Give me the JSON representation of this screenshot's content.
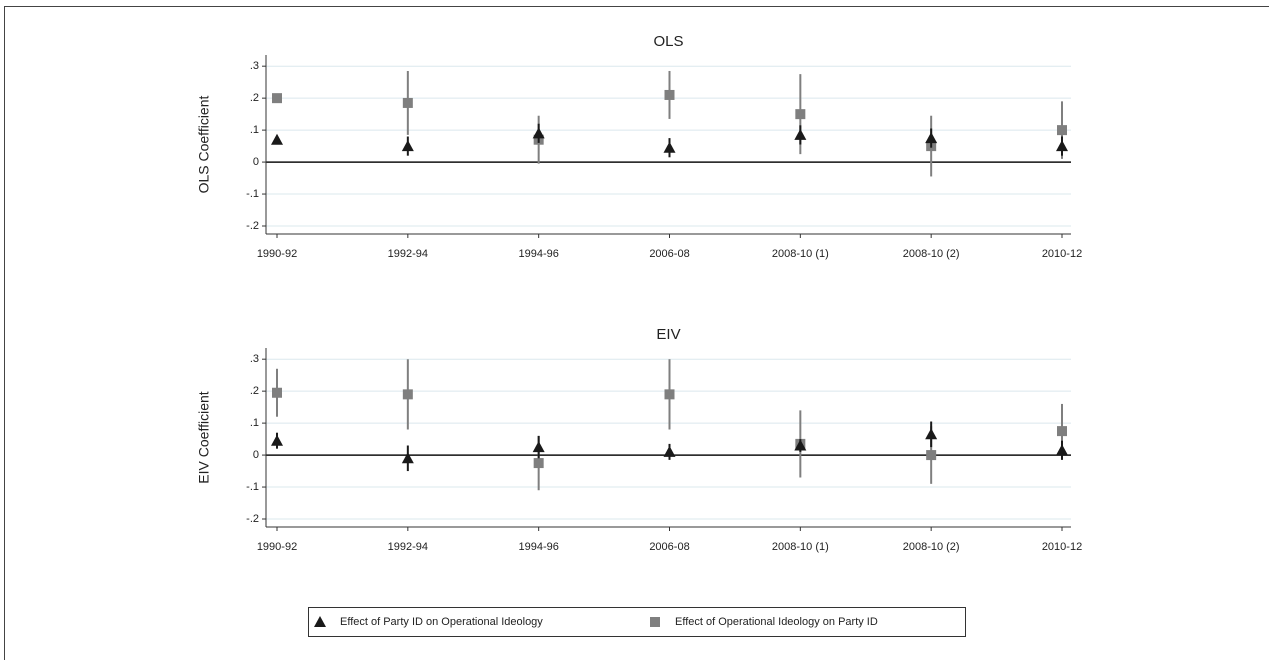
{
  "chart_data": [
    {
      "type": "errorbar",
      "title": "OLS",
      "y_label": "OLS Coefficient",
      "categories": [
        "1990-92",
        "1992-94",
        "1994-96",
        "2006-08",
        "2008-10 (1)",
        "2008-10 (2)",
        "2010-12"
      ],
      "series": [
        {
          "name": "Effect of Party ID on Operational Ideology",
          "color": "#1a1a1a",
          "marker": "triangle",
          "values": [
            0.07,
            0.05,
            0.09,
            0.045,
            0.085,
            0.075,
            0.05
          ],
          "errors": [
            0.01,
            0.03,
            0.03,
            0.03,
            0.03,
            0.03,
            0.03
          ]
        },
        {
          "name": "Effect of Operational Ideology on Party ID",
          "color": "#7f7f7f",
          "marker": "square",
          "values": [
            0.2,
            0.185,
            0.07,
            0.21,
            0.15,
            0.05,
            0.1
          ],
          "errors": [
            0.01,
            0.1,
            0.075,
            0.075,
            0.125,
            0.095,
            0.09
          ]
        }
      ],
      "ylim": [
        -0.225,
        0.335
      ],
      "yticks": [
        {
          "value": -0.2,
          "label": "-.2"
        },
        {
          "value": -0.1,
          "label": "-.1"
        },
        0,
        {
          "value": 0.1,
          "label": ".1"
        },
        {
          "value": 0.2,
          "label": ".2"
        },
        {
          "value": 0.3,
          "label": ".3"
        }
      ],
      "grid": true,
      "zero_line": true
    },
    {
      "type": "errorbar",
      "title": "EIV",
      "y_label": "EIV Coefficient",
      "categories": [
        "1990-92",
        "1992-94",
        "1994-96",
        "2006-08",
        "2008-10 (1)",
        "2008-10 (2)",
        "2010-12"
      ],
      "series": [
        {
          "name": "Effect of Party ID on Operational Ideology",
          "color": "#1a1a1a",
          "marker": "triangle",
          "values": [
            0.045,
            -0.01,
            0.025,
            0.01,
            0.03,
            0.065,
            0.015
          ],
          "errors": [
            0.025,
            0.04,
            0.035,
            0.025,
            0.02,
            0.04,
            0.03
          ]
        },
        {
          "name": "Effect of Operational Ideology on Party ID",
          "color": "#7f7f7f",
          "marker": "square",
          "values": [
            0.195,
            0.19,
            -0.025,
            0.19,
            0.035,
            0,
            0.075
          ],
          "errors": [
            0.075,
            0.11,
            0.085,
            0.11,
            0.105,
            0.09,
            0.085
          ]
        }
      ],
      "ylim": [
        -0.225,
        0.335
      ],
      "yticks": [
        {
          "value": -0.2,
          "label": "-.2"
        },
        {
          "value": -0.1,
          "label": "-.1"
        },
        0,
        {
          "value": 0.1,
          "label": ".1"
        },
        {
          "value": 0.2,
          "label": ".2"
        },
        {
          "value": 0.3,
          "label": ".3"
        }
      ],
      "grid": true,
      "zero_line": true
    }
  ]
}
